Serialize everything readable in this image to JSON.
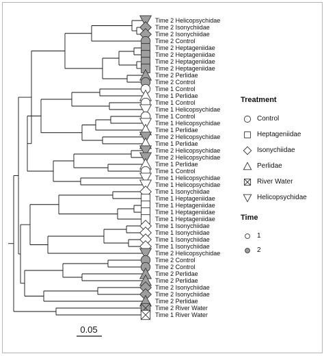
{
  "tips": [
    {
      "label": "Time 2 Helicopsychidae",
      "shape": "triangle-down",
      "time": 2
    },
    {
      "label": "Time 2 Isonychiidae",
      "shape": "diamond",
      "time": 2
    },
    {
      "label": "Time 2 Isonychiidae",
      "shape": "diamond",
      "time": 2
    },
    {
      "label": "Time 2 Control",
      "shape": "circle",
      "time": 2
    },
    {
      "label": "Time 2 Heptageniidae",
      "shape": "square",
      "time": 2
    },
    {
      "label": "Time 2 Heptageniidae",
      "shape": "square",
      "time": 2
    },
    {
      "label": "Time 2 Heptageniidae",
      "shape": "square",
      "time": 2
    },
    {
      "label": "Time 2 Heptageniidae",
      "shape": "square",
      "time": 2
    },
    {
      "label": "Time 2 Perlidae",
      "shape": "triangle-up",
      "time": 2
    },
    {
      "label": "Time 2 Control",
      "shape": "circle",
      "time": 2
    },
    {
      "label": "Time 1 Control",
      "shape": "circle",
      "time": 1
    },
    {
      "label": "Time 1 Perlidae",
      "shape": "triangle-up",
      "time": 1
    },
    {
      "label": "Time 1 Control",
      "shape": "circle",
      "time": 1
    },
    {
      "label": "Time 1 Helicopsychidae",
      "shape": "triangle-down",
      "time": 1
    },
    {
      "label": "Time 1 Control",
      "shape": "circle",
      "time": 1
    },
    {
      "label": "Time 1 Helicopsychidae",
      "shape": "triangle-down",
      "time": 1
    },
    {
      "label": "Time 1 Perlidae",
      "shape": "triangle-up",
      "time": 1
    },
    {
      "label": "Time 2 Helicopsychidae",
      "shape": "triangle-down",
      "time": 2
    },
    {
      "label": "Time 1 Perlidae",
      "shape": "triangle-up",
      "time": 1
    },
    {
      "label": "Time 2 Helicopsychidae",
      "shape": "triangle-down",
      "time": 2
    },
    {
      "label": "Time 2 Helicopsychidae",
      "shape": "triangle-down",
      "time": 2
    },
    {
      "label": "Time 1 Perlidae",
      "shape": "triangle-up",
      "time": 1
    },
    {
      "label": "Time 1 Control",
      "shape": "circle",
      "time": 1
    },
    {
      "label": "Time 1 Helicopsychidae",
      "shape": "triangle-down",
      "time": 1
    },
    {
      "label": "Time 1 Helicopsychidae",
      "shape": "triangle-down",
      "time": 1
    },
    {
      "label": "Time 1 Isonychiidae",
      "shape": "diamond",
      "time": 1
    },
    {
      "label": "Time 1 Heptageniidae",
      "shape": "square",
      "time": 1
    },
    {
      "label": "Time 1 Heptageniidae",
      "shape": "square",
      "time": 1
    },
    {
      "label": "Time 1 Heptageniidae",
      "shape": "square",
      "time": 1
    },
    {
      "label": "Time 1 Heptageniidae",
      "shape": "square",
      "time": 1
    },
    {
      "label": "Time 1 Isonychiidae",
      "shape": "diamond",
      "time": 1
    },
    {
      "label": "Time 1 Isonychiidae",
      "shape": "diamond",
      "time": 1
    },
    {
      "label": "Time 1 Isonychiidae",
      "shape": "diamond",
      "time": 1
    },
    {
      "label": "Time 1 Isonychiidae",
      "shape": "diamond",
      "time": 1
    },
    {
      "label": "Time 2 Helicopsychidae",
      "shape": "triangle-down",
      "time": 2
    },
    {
      "label": "Time 2 Control",
      "shape": "circle",
      "time": 2
    },
    {
      "label": "Time 2 Control",
      "shape": "circle",
      "time": 2
    },
    {
      "label": "Time 2 Perlidae",
      "shape": "triangle-up",
      "time": 2
    },
    {
      "label": "Time 2 Perlidae",
      "shape": "triangle-up",
      "time": 2
    },
    {
      "label": "Time 2 Isonychiidae",
      "shape": "diamond",
      "time": 2
    },
    {
      "label": "Time 2 Isonychiidae",
      "shape": "diamond",
      "time": 2
    },
    {
      "label": "Time 2 Perlidae",
      "shape": "triangle-up",
      "time": 2
    },
    {
      "label": "Time 2 River Water",
      "shape": "river-water",
      "time": 2
    },
    {
      "label": "Time 1 River Water",
      "shape": "river-water",
      "time": 1
    }
  ],
  "scale_bar": {
    "label": "0.05"
  },
  "legend": {
    "treatment_title": "Treatment",
    "treatments": [
      {
        "label": "Control",
        "shape": "circle"
      },
      {
        "label": "Heptageniidae",
        "shape": "square"
      },
      {
        "label": "Isonychiidae",
        "shape": "diamond"
      },
      {
        "label": "Perlidae",
        "shape": "triangle-up"
      },
      {
        "label": "River Water",
        "shape": "river-water"
      },
      {
        "label": "Helicopsychidae",
        "shape": "triangle-down"
      }
    ],
    "time_title": "Time",
    "times": [
      {
        "label": "1",
        "time": 1
      },
      {
        "label": "2",
        "time": 2
      }
    ]
  },
  "colors": {
    "time_1_fill": "#ffffff",
    "time_2_fill": "#9e9e9e",
    "outline": "#333333",
    "branch": "#111111"
  }
}
